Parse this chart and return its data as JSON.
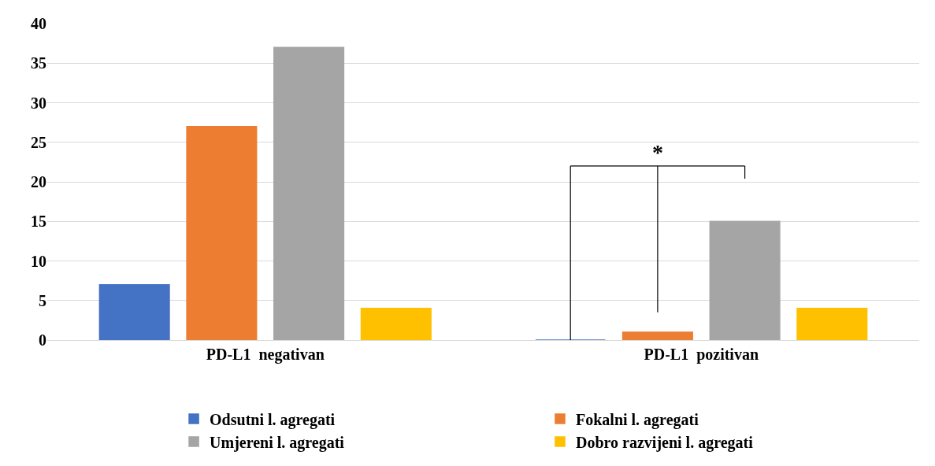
{
  "chart_data": {
    "type": "bar",
    "categories": [
      "PD-L1  negativan",
      "PD-L1  pozitivan"
    ],
    "series": [
      {
        "name": "Odsutni l. agregati",
        "color": "#4472c4",
        "values": [
          7,
          0
        ]
      },
      {
        "name": "Fokalni l. agregati",
        "color": "#ed7d31",
        "values": [
          27,
          1
        ]
      },
      {
        "name": "Umjereni l. agregati",
        "color": "#a5a5a5",
        "values": [
          37,
          15
        ]
      },
      {
        "name": "Dobro razvijeni l. agregati",
        "color": "#ffc000",
        "values": [
          4,
          4
        ]
      }
    ],
    "ylim": [
      0,
      40
    ],
    "yticks": [
      0,
      5,
      10,
      15,
      20,
      25,
      30,
      35,
      40
    ],
    "grid": "y",
    "legend": "bottom",
    "annotations": [
      "*"
    ]
  }
}
